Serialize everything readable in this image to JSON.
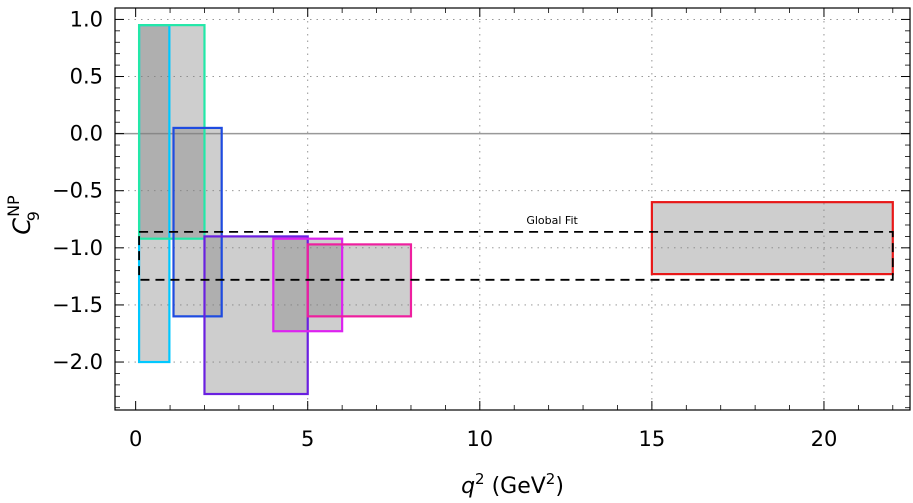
{
  "chart_data": {
    "type": "box-ranges",
    "title": "",
    "xlabel": {
      "base": "q",
      "sup": "2",
      "unit_prefix": " (GeV",
      "unit_sup": "2",
      "unit_suffix": ")"
    },
    "ylabel": {
      "base": "C",
      "sub": "9",
      "sup": "NP"
    },
    "xlim": [
      -0.6,
      22.5
    ],
    "ylim": [
      -2.42,
      1.1
    ],
    "xticks": [
      0,
      5,
      10,
      15,
      20
    ],
    "xtick_labels": [
      "0",
      "5",
      "10",
      "15",
      "20"
    ],
    "yticks": [
      1.0,
      0.5,
      0.0,
      -0.5,
      -1.0,
      -1.5,
      -2.0
    ],
    "ytick_labels": [
      "1.0",
      "0.5",
      "0.0",
      "−0.5",
      "−1.0",
      "−1.5",
      "−2.0"
    ],
    "grid": true,
    "zero_line": 0.0,
    "boxes": [
      {
        "name": "bin-0.1-1",
        "x": [
          0.1,
          0.98
        ],
        "y": [
          -2.0,
          0.95
        ],
        "color": "#00c8ff"
      },
      {
        "name": "bin-0.1-2",
        "x": [
          0.1,
          2.0
        ],
        "y": [
          -0.92,
          0.95
        ],
        "color": "#22e8a8"
      },
      {
        "name": "bin-1.1-2.5",
        "x": [
          1.1,
          2.5
        ],
        "y": [
          -1.6,
          0.05
        ],
        "color": "#1e4be0"
      },
      {
        "name": "bin-2-5",
        "x": [
          2.0,
          5.0
        ],
        "y": [
          -2.28,
          -0.9
        ],
        "color": "#6a20e0"
      },
      {
        "name": "bin-4-6",
        "x": [
          4.0,
          6.0
        ],
        "y": [
          -1.73,
          -0.92
        ],
        "color": "#dd22f0"
      },
      {
        "name": "bin-5-8",
        "x": [
          5.0,
          8.0
        ],
        "y": [
          -1.6,
          -0.97
        ],
        "color": "#ee1f9f"
      },
      {
        "name": "bin-15-22",
        "x": [
          15.0,
          22.0
        ],
        "y": [
          -1.23,
          -0.6
        ],
        "color": "#e81818"
      }
    ],
    "global_fit": {
      "label": "Global Fit",
      "x": [
        0.1,
        22.0
      ],
      "y": [
        -1.28,
        -0.86
      ]
    }
  }
}
